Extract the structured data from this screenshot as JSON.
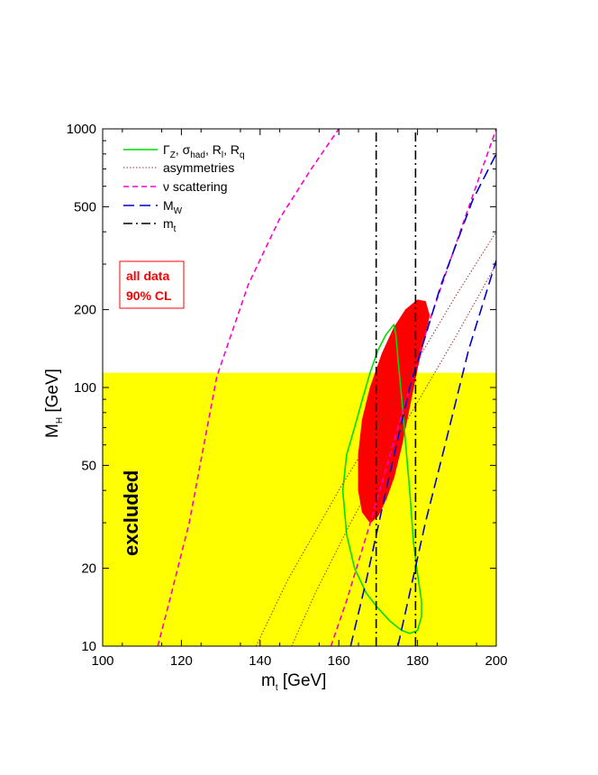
{
  "chart_data": {
    "type": "line",
    "xlabel": "m",
    "xlabel_sub": "t",
    "xlabel_unit": " [GeV]",
    "ylabel": "M",
    "ylabel_sub": "H",
    "ylabel_unit": " [GeV]",
    "xlim": [
      100,
      200
    ],
    "ylim": [
      10,
      1000
    ],
    "yscale": "log",
    "xticks": [
      100,
      120,
      140,
      160,
      180,
      200
    ],
    "yticks": [
      10,
      20,
      50,
      100,
      200,
      500,
      1000
    ],
    "excluded_region": {
      "label": "excluded",
      "ymax": 114,
      "color": "#ffff00"
    },
    "annotation_box": {
      "line1": "all data",
      "line2": "90% CL",
      "color": "#ff0000"
    },
    "filled_ellipse": {
      "color": "#ff0000",
      "points": [
        [
          182,
          215
        ],
        [
          183,
          190
        ],
        [
          182,
          160
        ],
        [
          180,
          120
        ],
        [
          178,
          85
        ],
        [
          176,
          60
        ],
        [
          174,
          45
        ],
        [
          172,
          37
        ],
        [
          170,
          32
        ],
        [
          168,
          30
        ],
        [
          166,
          33
        ],
        [
          165,
          40
        ],
        [
          165,
          55
        ],
        [
          166,
          75
        ],
        [
          168,
          100
        ],
        [
          171,
          135
        ],
        [
          174,
          170
        ],
        [
          177,
          200
        ],
        [
          180,
          218
        ]
      ]
    },
    "series": [
      {
        "name": "Γ",
        "name_parts": [
          [
            "Γ",
            "Z"
          ],
          [
            "σ",
            "had"
          ],
          [
            "R",
            "l"
          ],
          [
            "R",
            "q"
          ]
        ],
        "style": "solid",
        "color": "#00dd00",
        "x": [
          174,
          172,
          170,
          168,
          166,
          164,
          162,
          161,
          162,
          164,
          167,
          170,
          173,
          176,
          178,
          180,
          181,
          181,
          180,
          179,
          178,
          177,
          176,
          175,
          174.5,
          174
        ],
        "y": [
          175,
          160,
          140,
          115,
          90,
          70,
          55,
          40,
          27,
          20,
          16,
          14,
          12.5,
          11.5,
          11.2,
          11.5,
          13,
          15,
          19,
          25,
          40,
          60,
          90,
          130,
          160,
          175
        ]
      },
      {
        "name": "asymmetries",
        "style": "dotted",
        "color": "#993333",
        "lines": [
          {
            "x": [
              139,
              147,
              160,
              175,
              190,
              200
            ],
            "y": [
              10,
              18,
              40,
              95,
              230,
              400
            ]
          },
          {
            "x": [
              148,
              154,
              163,
              175,
              190,
              200
            ],
            "y": [
              10,
              16,
              30,
              65,
              160,
              300
            ]
          }
        ]
      },
      {
        "name": "ν scattering",
        "style": "dashed",
        "color": "#ff00cc",
        "lines": [
          {
            "x": [
              114,
              117,
              122,
              129,
              137,
              145,
              153,
              160
            ],
            "y": [
              10,
              15,
              30,
              110,
              250,
              450,
              700,
              1000
            ]
          },
          {
            "x": [
              158,
              162,
              168,
              175,
              183,
              192,
              200
            ],
            "y": [
              10,
              15,
              30,
              70,
              180,
              450,
              1000
            ]
          }
        ]
      },
      {
        "name": "M",
        "name_sub": "W",
        "style": "longdash",
        "color": "#0000cc",
        "lines": [
          {
            "x": [
              163,
              167,
              172,
              178,
              186,
              194,
              200
            ],
            "y": [
              10,
              18,
              40,
              100,
              250,
              530,
              800
            ]
          },
          {
            "x": [
              175,
              178,
              182,
              187,
              193,
              200
            ],
            "y": [
              10,
              16,
              30,
              60,
              140,
              310
            ]
          }
        ]
      },
      {
        "name": "m",
        "name_sub": "t",
        "style": "dashdot",
        "color": "#000000",
        "lines": [
          {
            "x": [
              169.5,
              169.5
            ],
            "y": [
              10,
              1000
            ]
          },
          {
            "x": [
              179.5,
              179.5
            ],
            "y": [
              10,
              1000
            ]
          }
        ]
      }
    ]
  }
}
